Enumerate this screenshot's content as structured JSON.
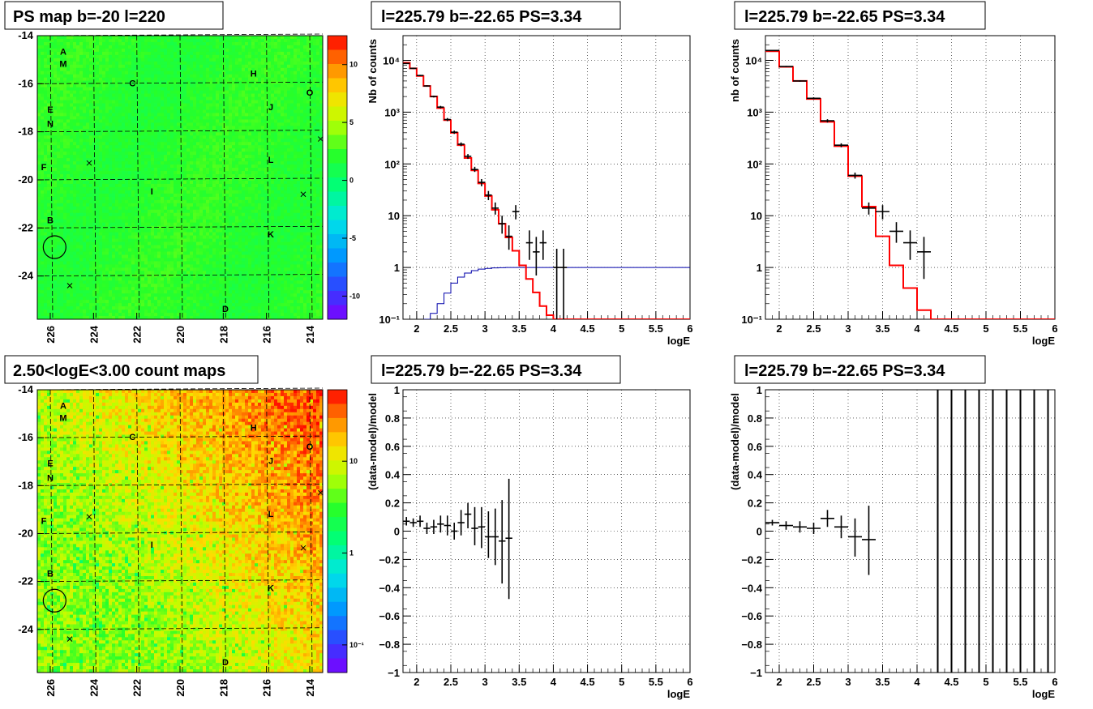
{
  "colors": {
    "model_line": "#ff0000",
    "efficiency_line": "#0000aa",
    "data_points": "#000000",
    "grid": "#000000"
  },
  "maps": [
    {
      "title": "PS map b=-20 l=220",
      "x_ticks": [
        "226",
        "224",
        "222",
        "220",
        "218",
        "216",
        "214"
      ],
      "x_range": [
        226.6,
        213.4
      ],
      "y_ticks": [
        "-14",
        "-16",
        "-18",
        "-20",
        "-22",
        "-24"
      ],
      "y_range": [
        -25.8,
        -14
      ],
      "colorbar_labels": [
        "10",
        "5",
        "0",
        "-5",
        "-10"
      ],
      "colorbar_range": [
        -12,
        12.5
      ],
      "colorscale": "diverging",
      "source_labels": [
        {
          "label": "A",
          "l": 225.4,
          "b": -14.8
        },
        {
          "label": "M",
          "l": 225.4,
          "b": -15.3
        },
        {
          "label": "C",
          "l": 222.2,
          "b": -16.1
        },
        {
          "label": "H",
          "l": 216.6,
          "b": -15.7
        },
        {
          "label": "O",
          "l": 214.0,
          "b": -16.5
        },
        {
          "label": "J",
          "l": 215.8,
          "b": -17.1
        },
        {
          "label": "E",
          "l": 226.0,
          "b": -17.2
        },
        {
          "label": "N",
          "l": 226.0,
          "b": -17.8
        },
        {
          "label": "F",
          "l": 226.3,
          "b": -19.6
        },
        {
          "label": "L",
          "l": 215.8,
          "b": -19.3
        },
        {
          "label": "I",
          "l": 221.3,
          "b": -20.6
        },
        {
          "label": "B",
          "l": 226.0,
          "b": -21.8
        },
        {
          "label": "K",
          "l": 215.8,
          "b": -22.4
        },
        {
          "label": "D",
          "l": 217.9,
          "b": -25.5
        }
      ],
      "markers": [
        {
          "l": 224.2,
          "b": -19.3
        },
        {
          "l": 214.3,
          "b": -20.6
        },
        {
          "l": 225.1,
          "b": -24.4
        },
        {
          "l": 213.5,
          "b": -18.3
        }
      ],
      "circle": {
        "l": 225.8,
        "b": -22.8
      }
    },
    {
      "title": "2.50<logE<3.00 count maps",
      "x_ticks": [
        "226",
        "224",
        "222",
        "220",
        "218",
        "216",
        "214"
      ],
      "x_range": [
        226.6,
        213.4
      ],
      "y_ticks": [
        "-14",
        "-16",
        "-18",
        "-20",
        "-22",
        "-24"
      ],
      "y_range": [
        -25.8,
        -14
      ],
      "colorbar_labels": [
        "10",
        "1",
        "10⁻¹"
      ],
      "colorbar_range": [
        0.05,
        60
      ],
      "colorscale": "log",
      "source_labels": [
        {
          "label": "A",
          "l": 225.4,
          "b": -14.8
        },
        {
          "label": "M",
          "l": 225.4,
          "b": -15.3
        },
        {
          "label": "C",
          "l": 222.2,
          "b": -16.1
        },
        {
          "label": "H",
          "l": 216.6,
          "b": -15.7
        },
        {
          "label": "O",
          "l": 214.0,
          "b": -16.5
        },
        {
          "label": "J",
          "l": 215.8,
          "b": -17.1
        },
        {
          "label": "E",
          "l": 226.0,
          "b": -17.2
        },
        {
          "label": "N",
          "l": 226.0,
          "b": -17.8
        },
        {
          "label": "F",
          "l": 226.3,
          "b": -19.6
        },
        {
          "label": "L",
          "l": 215.8,
          "b": -19.3
        },
        {
          "label": "I",
          "l": 221.3,
          "b": -20.6
        },
        {
          "label": "B",
          "l": 226.0,
          "b": -21.8
        },
        {
          "label": "K",
          "l": 215.8,
          "b": -22.4
        },
        {
          "label": "D",
          "l": 217.9,
          "b": -25.5
        }
      ],
      "markers": [
        {
          "l": 224.2,
          "b": -19.3
        },
        {
          "l": 214.3,
          "b": -20.6
        },
        {
          "l": 225.1,
          "b": -24.4
        },
        {
          "l": 213.5,
          "b": -18.3
        }
      ],
      "circle": {
        "l": 225.8,
        "b": -22.8
      }
    }
  ],
  "chart_data": [
    {
      "type": "line",
      "title": "l=225.79 b=-22.65 PS=3.34",
      "xlabel": "logE",
      "ylabel": "Nb of counts",
      "xlim": [
        1.8,
        6
      ],
      "ylim": [
        0.1,
        30000
      ],
      "yscale": "log",
      "grid": true,
      "x_tick_labels": [
        "2",
        "2.5",
        "3",
        "3.5",
        "4",
        "4.5",
        "5",
        "5.5",
        "6"
      ],
      "y_tick_labels": [
        "10⁻¹",
        "1",
        "10",
        "10²",
        "10³",
        "10⁴"
      ],
      "model_bin_edges": [
        1.8,
        1.9,
        2.0,
        2.1,
        2.2,
        2.3,
        2.4,
        2.5,
        2.6,
        2.7,
        2.8,
        2.9,
        3.0,
        3.1,
        3.2,
        3.3,
        3.4,
        3.5,
        3.6,
        3.7,
        3.8,
        3.9,
        4.0,
        4.1,
        6.0
      ],
      "model_values": [
        9000,
        7000,
        5000,
        3200,
        2000,
        1200,
        700,
        400,
        230,
        130,
        75,
        42,
        24,
        13,
        7,
        3.8,
        2.1,
        1.1,
        0.6,
        0.33,
        0.18,
        0.12,
        0.1,
        0.1
      ],
      "efficiency_bin_edges": [
        2.1,
        2.2,
        2.3,
        2.4,
        2.5,
        2.6,
        2.7,
        2.8,
        2.9,
        3.0,
        3.1,
        3.2,
        3.3,
        3.4,
        6.0
      ],
      "efficiency_values": [
        0.1,
        0.13,
        0.2,
        0.32,
        0.5,
        0.65,
        0.78,
        0.87,
        0.93,
        0.96,
        0.98,
        0.99,
        1.0,
        1.0
      ],
      "data_points": [
        {
          "x": 1.85,
          "y": 8700,
          "lo": 8500,
          "hi": 8900
        },
        {
          "x": 1.95,
          "y": 7000,
          "lo": 6800,
          "hi": 7200
        },
        {
          "x": 2.05,
          "y": 5100,
          "lo": 4950,
          "hi": 5250
        },
        {
          "x": 2.15,
          "y": 3200,
          "lo": 3100,
          "hi": 3300
        },
        {
          "x": 2.25,
          "y": 2000,
          "lo": 1920,
          "hi": 2080
        },
        {
          "x": 2.35,
          "y": 1250,
          "lo": 1180,
          "hi": 1320
        },
        {
          "x": 2.45,
          "y": 720,
          "lo": 670,
          "hi": 770
        },
        {
          "x": 2.55,
          "y": 410,
          "lo": 380,
          "hi": 440
        },
        {
          "x": 2.65,
          "y": 240,
          "lo": 220,
          "hi": 260
        },
        {
          "x": 2.75,
          "y": 140,
          "lo": 125,
          "hi": 155
        },
        {
          "x": 2.85,
          "y": 78,
          "lo": 70,
          "hi": 88
        },
        {
          "x": 2.95,
          "y": 44,
          "lo": 37,
          "hi": 51
        },
        {
          "x": 3.05,
          "y": 25,
          "lo": 20,
          "hi": 30
        },
        {
          "x": 3.15,
          "y": 14,
          "lo": 10.5,
          "hi": 18
        },
        {
          "x": 3.25,
          "y": 7,
          "lo": 4.5,
          "hi": 10
        },
        {
          "x": 3.35,
          "y": 4,
          "lo": 2.2,
          "hi": 6.5
        },
        {
          "x": 3.45,
          "y": 12,
          "lo": 8.5,
          "hi": 16
        },
        {
          "x": 3.65,
          "y": 3,
          "lo": 1.4,
          "hi": 5.2
        },
        {
          "x": 3.75,
          "y": 2,
          "lo": 0.7,
          "hi": 3.9
        },
        {
          "x": 3.85,
          "y": 3,
          "lo": 1.4,
          "hi": 5.2
        },
        {
          "x": 4.05,
          "y": 1,
          "lo": 0.1,
          "hi": 2.3
        },
        {
          "x": 4.15,
          "y": 1,
          "lo": 0.1,
          "hi": 2.3
        }
      ]
    },
    {
      "type": "line",
      "title": "l=225.79 b=-22.65 PS=3.34",
      "xlabel": "logE",
      "ylabel": "nb of counts",
      "xlim": [
        1.8,
        6
      ],
      "ylim": [
        0.1,
        30000
      ],
      "yscale": "log",
      "grid": true,
      "x_tick_labels": [
        "2",
        "2.5",
        "3",
        "3.5",
        "4",
        "4.5",
        "5",
        "5.5",
        "6"
      ],
      "y_tick_labels": [
        "10⁻¹",
        "1",
        "10",
        "10²",
        "10³",
        "10⁴"
      ],
      "model_bin_edges": [
        1.8,
        2.0,
        2.2,
        2.4,
        2.6,
        2.8,
        3.0,
        3.2,
        3.4,
        3.6,
        3.8,
        4.0,
        4.2,
        6.0
      ],
      "model_values": [
        15000,
        7500,
        4000,
        1800,
        650,
        220,
        58,
        15,
        4,
        1.1,
        0.4,
        0.15,
        0.1
      ],
      "data_points": [
        {
          "x": 1.9,
          "y": 15500,
          "lo": 15200,
          "hi": 15800
        },
        {
          "x": 2.1,
          "y": 7600,
          "lo": 7400,
          "hi": 7800
        },
        {
          "x": 2.3,
          "y": 4000,
          "lo": 3880,
          "hi": 4120
        },
        {
          "x": 2.5,
          "y": 1850,
          "lo": 1770,
          "hi": 1930
        },
        {
          "x": 2.7,
          "y": 680,
          "lo": 630,
          "hi": 730
        },
        {
          "x": 2.9,
          "y": 230,
          "lo": 210,
          "hi": 250
        },
        {
          "x": 3.1,
          "y": 60,
          "lo": 52,
          "hi": 68
        },
        {
          "x": 3.3,
          "y": 14,
          "lo": 10.5,
          "hi": 18
        },
        {
          "x": 3.5,
          "y": 12,
          "lo": 8.5,
          "hi": 16
        },
        {
          "x": 3.7,
          "y": 5,
          "lo": 3.0,
          "hi": 7.5
        },
        {
          "x": 3.9,
          "y": 3,
          "lo": 1.4,
          "hi": 5.2
        },
        {
          "x": 4.1,
          "y": 2,
          "lo": 0.6,
          "hi": 3.9
        }
      ]
    },
    {
      "type": "scatter",
      "title": "l=225.79 b=-22.65 PS=3.34",
      "xlabel": "logE",
      "ylabel": "(data-model)/model",
      "xlim": [
        1.8,
        6
      ],
      "ylim": [
        -1,
        1
      ],
      "grid": true,
      "x_tick_labels": [
        "2",
        "2.5",
        "3",
        "3.5",
        "4",
        "4.5",
        "5",
        "5.5",
        "6"
      ],
      "y_tick_labels": [
        "1",
        "0.8",
        "0.6",
        "0.4",
        "0.2",
        "0",
        "−0.2",
        "−0.4",
        "−0.6",
        "−0.8",
        "−1"
      ],
      "data_points": [
        {
          "x": 1.85,
          "y": 0.07,
          "lo": 0.04,
          "hi": 0.1
        },
        {
          "x": 1.95,
          "y": 0.06,
          "lo": 0.03,
          "hi": 0.09
        },
        {
          "x": 2.05,
          "y": 0.07,
          "lo": 0.03,
          "hi": 0.11
        },
        {
          "x": 2.15,
          "y": 0.02,
          "lo": -0.02,
          "hi": 0.06
        },
        {
          "x": 2.25,
          "y": 0.03,
          "lo": -0.02,
          "hi": 0.08
        },
        {
          "x": 2.35,
          "y": 0.05,
          "lo": -0.01,
          "hi": 0.11
        },
        {
          "x": 2.45,
          "y": 0.04,
          "lo": -0.03,
          "hi": 0.11
        },
        {
          "x": 2.55,
          "y": 0.0,
          "lo": -0.06,
          "hi": 0.06
        },
        {
          "x": 2.65,
          "y": 0.06,
          "lo": -0.03,
          "hi": 0.15
        },
        {
          "x": 2.75,
          "y": 0.12,
          "lo": 0.02,
          "hi": 0.2
        },
        {
          "x": 2.85,
          "y": 0.02,
          "lo": -0.1,
          "hi": 0.17
        },
        {
          "x": 2.95,
          "y": 0.03,
          "lo": -0.12,
          "hi": 0.17
        },
        {
          "x": 3.05,
          "y": -0.04,
          "lo": -0.19,
          "hi": 0.14
        },
        {
          "x": 3.15,
          "y": -0.04,
          "lo": -0.24,
          "hi": 0.16
        },
        {
          "x": 3.25,
          "y": -0.07,
          "lo": -0.37,
          "hi": 0.22
        },
        {
          "x": 3.35,
          "y": -0.05,
          "lo": -0.48,
          "hi": 0.37
        }
      ]
    },
    {
      "type": "scatter",
      "title": "l=225.79 b=-22.65 PS=3.34",
      "xlabel": "logE",
      "ylabel": "(data-model)/model",
      "xlim": [
        1.8,
        6
      ],
      "ylim": [
        -1,
        1
      ],
      "grid": true,
      "x_tick_labels": [
        "2",
        "2.5",
        "3",
        "3.5",
        "4",
        "4.5",
        "5",
        "5.5",
        "6"
      ],
      "y_tick_labels": [
        "1",
        "0.8",
        "0.6",
        "0.4",
        "0.2",
        "0",
        "−0.2",
        "−0.4",
        "−0.6",
        "−0.8",
        "−1"
      ],
      "data_points": [
        {
          "x": 1.9,
          "y": 0.06,
          "lo": 0.04,
          "hi": 0.08
        },
        {
          "x": 2.1,
          "y": 0.04,
          "lo": 0.01,
          "hi": 0.07
        },
        {
          "x": 2.3,
          "y": 0.03,
          "lo": -0.01,
          "hi": 0.07
        },
        {
          "x": 2.5,
          "y": 0.02,
          "lo": -0.02,
          "hi": 0.06
        },
        {
          "x": 2.7,
          "y": 0.09,
          "lo": 0.03,
          "hi": 0.15
        },
        {
          "x": 2.9,
          "y": 0.03,
          "lo": -0.05,
          "hi": 0.11
        },
        {
          "x": 3.1,
          "y": -0.04,
          "lo": -0.18,
          "hi": 0.09
        },
        {
          "x": 3.3,
          "y": -0.06,
          "lo": -0.31,
          "hi": 0.18
        }
      ],
      "full_range_bars_x": [
        4.3,
        4.5,
        4.7,
        4.9,
        5.1,
        5.3,
        5.5,
        5.7,
        5.9
      ]
    }
  ]
}
